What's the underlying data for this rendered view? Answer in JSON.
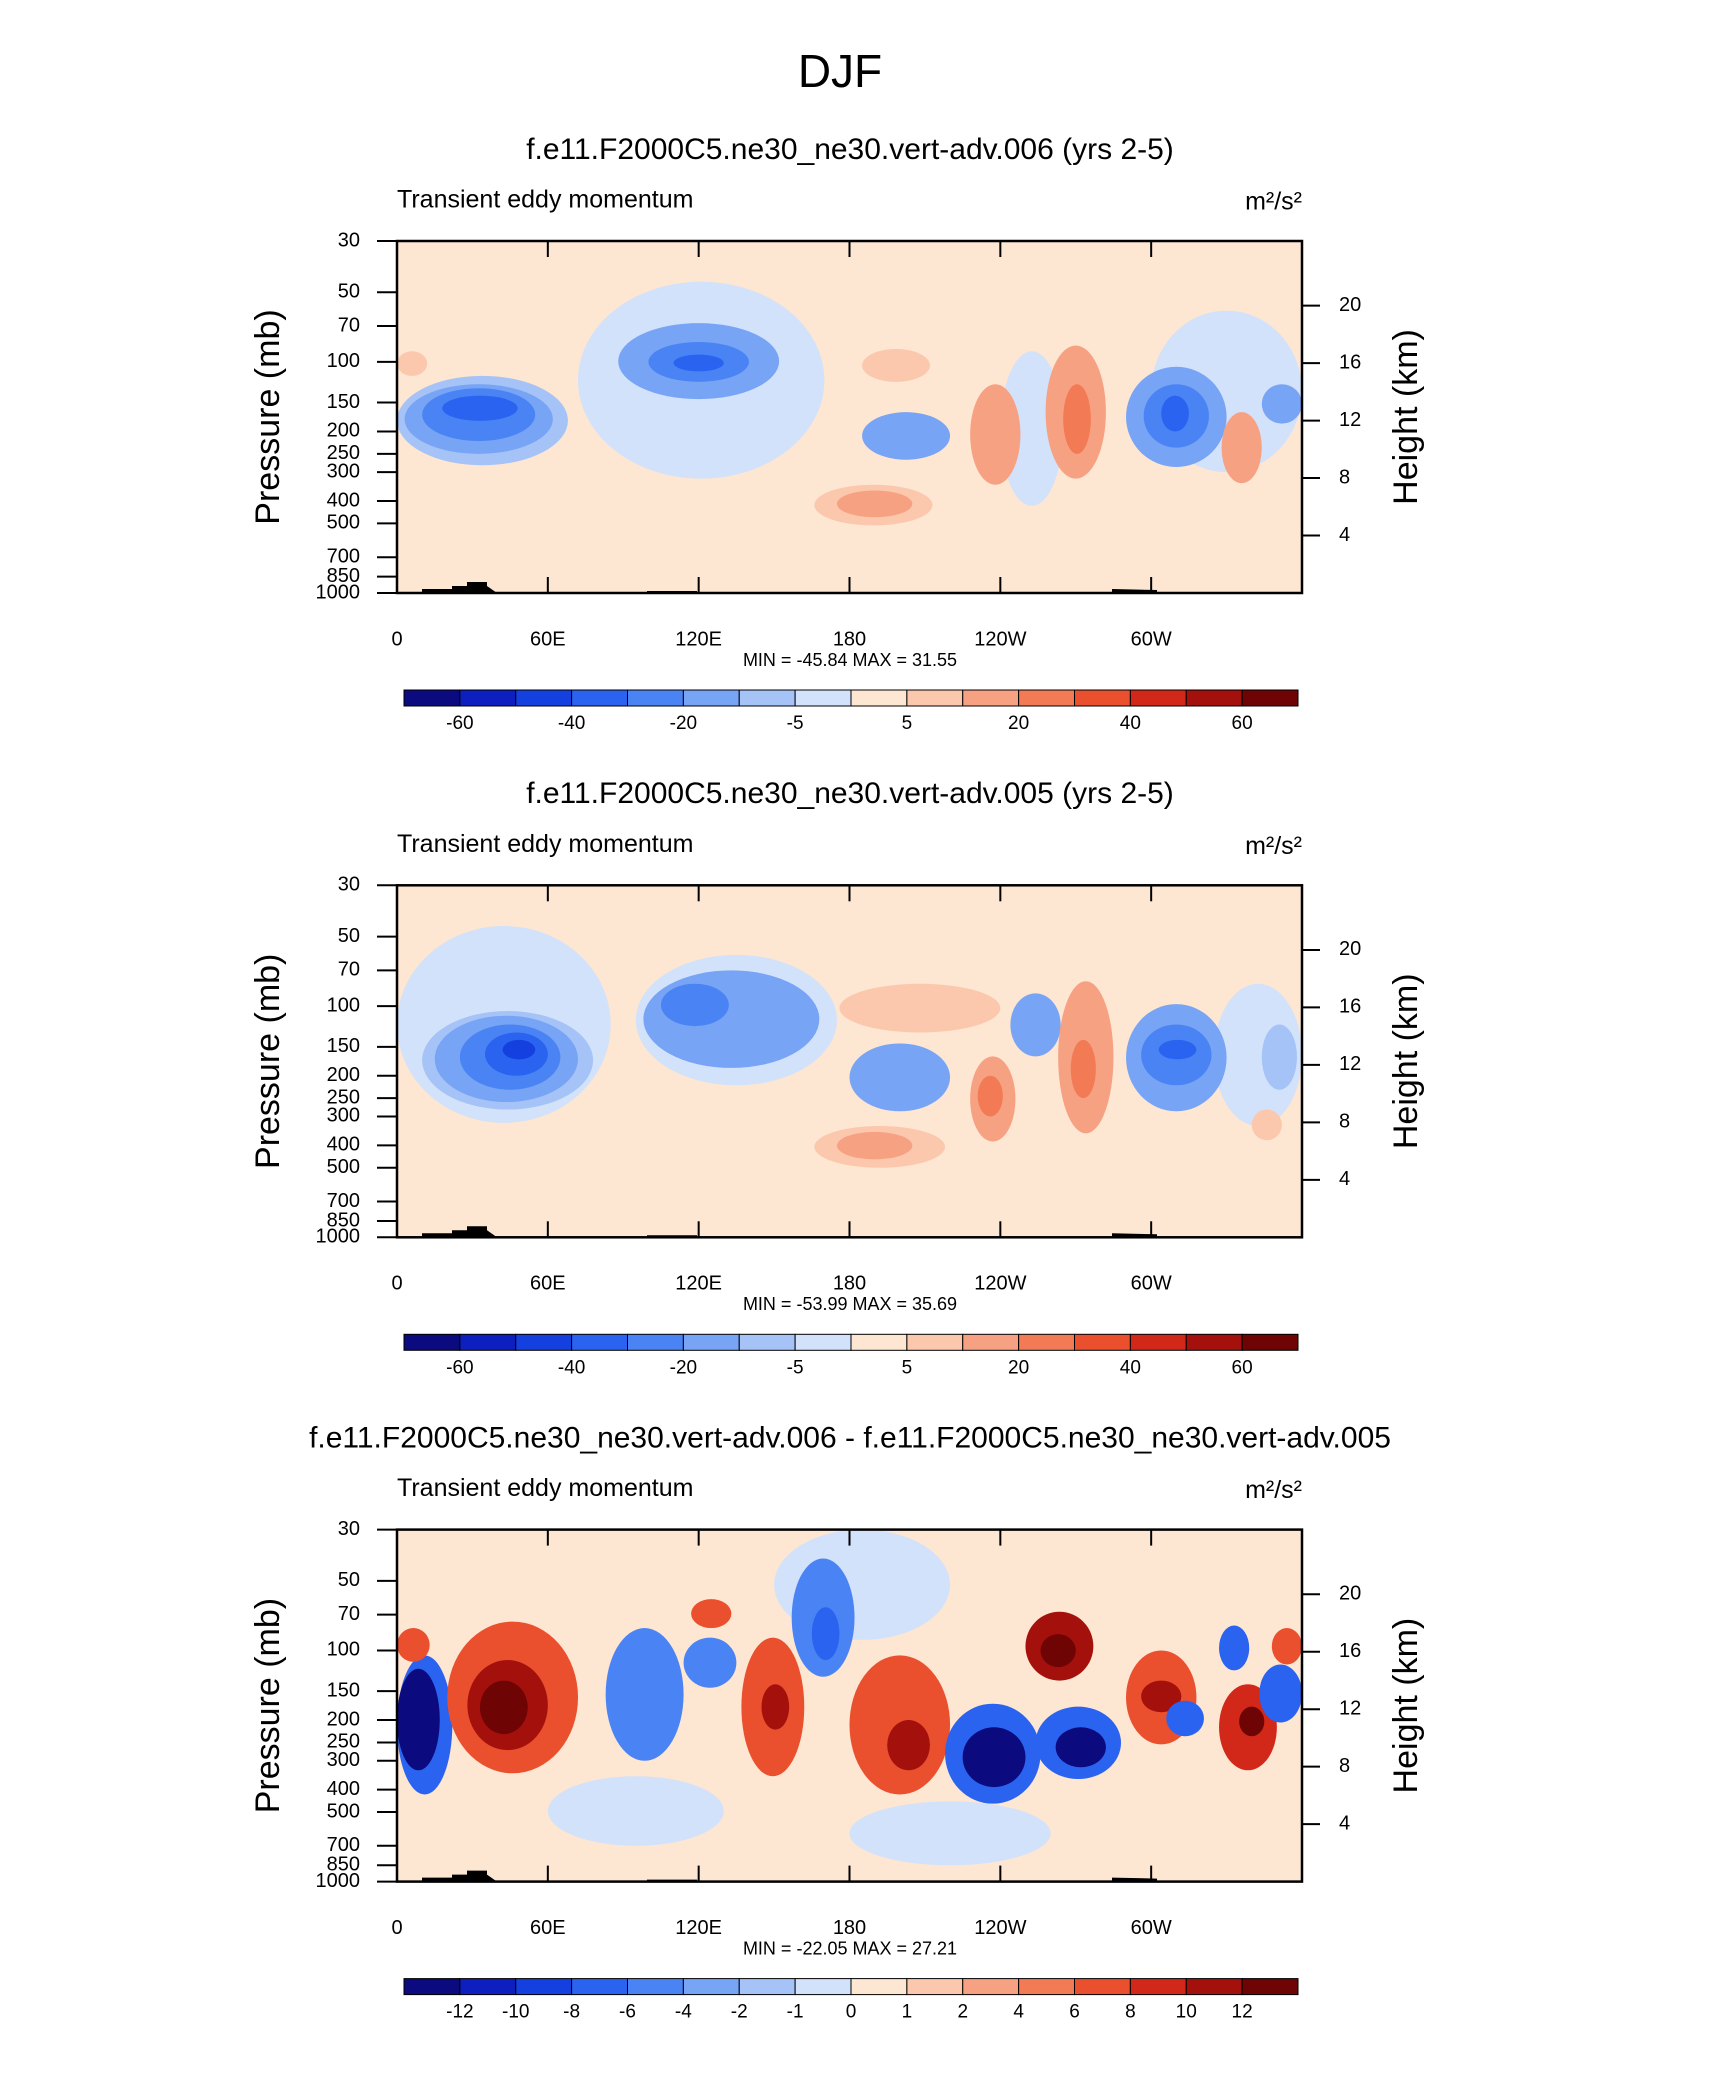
{
  "title": "DJF",
  "chart_data": [
    {
      "type": "contour",
      "title": "f.e11.F2000C5.ne30_ne30.vert-adv.006 (yrs 2-5)",
      "subtitle": "Transient eddy momentum",
      "units": "m²/s²",
      "y_label": "Pressure (mb)",
      "y2_label": "Height (km)",
      "stats": "MIN = -45.84  MAX =  31.55",
      "xlim": [
        0,
        360
      ],
      "xticks": [
        0,
        {
          "value": 60,
          "label": "60E"
        },
        {
          "value": 120,
          "label": "120E"
        },
        180,
        {
          "value": 240,
          "label": "120W"
        },
        {
          "value": 300,
          "label": "60W"
        }
      ],
      "ylim": [
        1000,
        30
      ],
      "log_y": true,
      "yticks": [
        30,
        50,
        70,
        100,
        150,
        200,
        250,
        300,
        400,
        500,
        700,
        850,
        1000
      ],
      "y2lim": [
        0,
        24.5
      ],
      "y2ticks": [
        4,
        8,
        12,
        16,
        20
      ],
      "background": 2,
      "features": [
        {
          "lon": [
            72,
            170
          ],
          "p": [
            45,
            320
          ],
          "value": -3
        },
        {
          "lon": [
            240,
            265
          ],
          "p": [
            90,
            420
          ],
          "value": -3
        },
        {
          "lon": [
            300,
            360
          ],
          "p": [
            60,
            300
          ],
          "value": -3
        },
        {
          "lon": [
            0,
            68
          ],
          "p": [
            115,
            280
          ],
          "value": -7
        },
        {
          "lon": [
            3,
            62
          ],
          "p": [
            125,
            250
          ],
          "value": -15
        },
        {
          "lon": [
            10,
            55
          ],
          "p": [
            130,
            220
          ],
          "value": -25
        },
        {
          "lon": [
            18,
            48
          ],
          "p": [
            140,
            180
          ],
          "value": -35
        },
        {
          "lon": [
            88,
            152
          ],
          "p": [
            68,
            145
          ],
          "value": -15
        },
        {
          "lon": [
            100,
            140
          ],
          "p": [
            82,
            122
          ],
          "value": -25
        },
        {
          "lon": [
            110,
            130
          ],
          "p": [
            93,
            110
          ],
          "value": -35
        },
        {
          "lon": [
            185,
            220
          ],
          "p": [
            165,
            265
          ],
          "value": -15
        },
        {
          "lon": [
            166,
            213
          ],
          "p": [
            340,
            510
          ],
          "value": 7
        },
        {
          "lon": [
            175,
            205
          ],
          "p": [
            360,
            470
          ],
          "value": 12
        },
        {
          "lon": [
            185,
            212
          ],
          "p": [
            88,
            122
          ],
          "value": 8
        },
        {
          "lon": [
            228,
            248
          ],
          "p": [
            125,
            340
          ],
          "value": 15
        },
        {
          "lon": [
            258,
            282
          ],
          "p": [
            85,
            320
          ],
          "value": 15
        },
        {
          "lon": [
            265,
            276
          ],
          "p": [
            125,
            250
          ],
          "value": 25
        },
        {
          "lon": [
            290,
            330
          ],
          "p": [
            105,
            285
          ],
          "value": -15
        },
        {
          "lon": [
            297,
            323
          ],
          "p": [
            125,
            235
          ],
          "value": -25
        },
        {
          "lon": [
            304,
            315
          ],
          "p": [
            140,
            200
          ],
          "value": -35
        },
        {
          "lon": [
            328,
            344
          ],
          "p": [
            165,
            335
          ],
          "value": 12
        },
        {
          "lon": [
            344,
            360
          ],
          "p": [
            125,
            185
          ],
          "value": -15
        },
        {
          "lon": [
            0,
            12
          ],
          "p": [
            90,
            115
          ],
          "value": 7
        }
      ],
      "colorbar": {
        "levels": [
          -60,
          -50,
          -40,
          -30,
          -20,
          -10,
          -5,
          0,
          5,
          10,
          20,
          30,
          40,
          50,
          60
        ],
        "label_stride": 2,
        "colors": [
          "#0b0a7e",
          "#0d1fbf",
          "#1540e0",
          "#2a63f0",
          "#4a84f4",
          "#78a4f5",
          "#a5c3f7",
          "#d2e2fb",
          "#fde6d2",
          "#fbc8ad",
          "#f7a183",
          "#f27a55",
          "#ea4f2e",
          "#d2281a",
          "#a4110d",
          "#6e0404"
        ]
      }
    },
    {
      "type": "contour",
      "title": "f.e11.F2000C5.ne30_ne30.vert-adv.005 (yrs 2-5)",
      "subtitle": "Transient eddy momentum",
      "units": "m²/s²",
      "y_label": "Pressure (mb)",
      "y2_label": "Height (km)",
      "stats": "MIN = -53.99  MAX =  35.69",
      "xlim": [
        0,
        360
      ],
      "xticks": [
        0,
        {
          "value": 60,
          "label": "60E"
        },
        {
          "value": 120,
          "label": "120E"
        },
        180,
        {
          "value": 240,
          "label": "120W"
        },
        {
          "value": 300,
          "label": "60W"
        }
      ],
      "ylim": [
        1000,
        30
      ],
      "log_y": true,
      "yticks": [
        30,
        50,
        70,
        100,
        150,
        200,
        250,
        300,
        400,
        500,
        700,
        850,
        1000
      ],
      "y2lim": [
        0,
        24.5
      ],
      "y2ticks": [
        4,
        8,
        12,
        16,
        20
      ],
      "background": 2,
      "features": [
        {
          "lon": [
            0,
            85
          ],
          "p": [
            45,
            320
          ],
          "value": -3
        },
        {
          "lon": [
            95,
            175
          ],
          "p": [
            60,
            220
          ],
          "value": -3
        },
        {
          "lon": [
            325,
            360
          ],
          "p": [
            80,
            330
          ],
          "value": -3
        },
        {
          "lon": [
            10,
            78
          ],
          "p": [
            105,
            280
          ],
          "value": -7
        },
        {
          "lon": [
            15,
            72
          ],
          "p": [
            110,
            260
          ],
          "value": -15
        },
        {
          "lon": [
            25,
            65
          ],
          "p": [
            120,
            230
          ],
          "value": -25
        },
        {
          "lon": [
            35,
            60
          ],
          "p": [
            130,
            200
          ],
          "value": -35
        },
        {
          "lon": [
            42,
            55
          ],
          "p": [
            140,
            170
          ],
          "value": -45
        },
        {
          "lon": [
            98,
            168
          ],
          "p": [
            70,
            185
          ],
          "value": -15
        },
        {
          "lon": [
            105,
            132
          ],
          "p": [
            80,
            122
          ],
          "value": -25
        },
        {
          "lon": [
            180,
            220
          ],
          "p": [
            145,
            285
          ],
          "value": -15
        },
        {
          "lon": [
            166,
            218
          ],
          "p": [
            330,
            500
          ],
          "value": 7
        },
        {
          "lon": [
            175,
            205
          ],
          "p": [
            350,
            460
          ],
          "value": 12
        },
        {
          "lon": [
            176,
            240
          ],
          "p": [
            80,
            130
          ],
          "value": 7
        },
        {
          "lon": [
            228,
            246
          ],
          "p": [
            165,
            385
          ],
          "value": 15
        },
        {
          "lon": [
            231,
            241
          ],
          "p": [
            200,
            300
          ],
          "value": 25
        },
        {
          "lon": [
            244,
            264
          ],
          "p": [
            88,
            165
          ],
          "value": -15
        },
        {
          "lon": [
            263,
            285
          ],
          "p": [
            78,
            355
          ],
          "value": 15
        },
        {
          "lon": [
            268,
            278
          ],
          "p": [
            140,
            250
          ],
          "value": 25
        },
        {
          "lon": [
            290,
            330
          ],
          "p": [
            98,
            285
          ],
          "value": -15
        },
        {
          "lon": [
            296,
            324
          ],
          "p": [
            120,
            220
          ],
          "value": -25
        },
        {
          "lon": [
            303,
            318
          ],
          "p": [
            140,
            170
          ],
          "value": -35
        },
        {
          "lon": [
            344,
            358
          ],
          "p": [
            120,
            230
          ],
          "value": -7
        },
        {
          "lon": [
            340,
            352
          ],
          "p": [
            280,
            380
          ],
          "value": 7
        }
      ],
      "colorbar": {
        "levels": [
          -60,
          -50,
          -40,
          -30,
          -20,
          -10,
          -5,
          0,
          5,
          10,
          20,
          30,
          40,
          50,
          60
        ],
        "label_stride": 2,
        "colors": [
          "#0b0a7e",
          "#0d1fbf",
          "#1540e0",
          "#2a63f0",
          "#4a84f4",
          "#78a4f5",
          "#a5c3f7",
          "#d2e2fb",
          "#fde6d2",
          "#fbc8ad",
          "#f7a183",
          "#f27a55",
          "#ea4f2e",
          "#d2281a",
          "#a4110d",
          "#6e0404"
        ]
      }
    },
    {
      "type": "contour",
      "title": "f.e11.F2000C5.ne30_ne30.vert-adv.006 - f.e11.F2000C5.ne30_ne30.vert-adv.005",
      "subtitle": "Transient eddy momentum",
      "units": "m²/s²",
      "y_label": "Pressure (mb)",
      "y2_label": "Height (km)",
      "stats": "MIN = -22.05  MAX =  27.21",
      "xlim": [
        0,
        360
      ],
      "xticks": [
        0,
        {
          "value": 60,
          "label": "60E"
        },
        {
          "value": 120,
          "label": "120E"
        },
        180,
        {
          "value": 240,
          "label": "120W"
        },
        {
          "value": 300,
          "label": "60W"
        }
      ],
      "ylim": [
        1000,
        30
      ],
      "log_y": true,
      "yticks": [
        30,
        50,
        70,
        100,
        150,
        200,
        250,
        300,
        400,
        500,
        700,
        850,
        1000
      ],
      "y2lim": [
        0,
        24.5
      ],
      "y2ticks": [
        4,
        8,
        12,
        16,
        20
      ],
      "background": 0.5,
      "features": [
        {
          "lon": [
            60,
            130
          ],
          "p": [
            350,
            700
          ],
          "value": -0.5
        },
        {
          "lon": [
            180,
            260
          ],
          "p": [
            450,
            850
          ],
          "value": -0.5
        },
        {
          "lon": [
            150,
            220
          ],
          "p": [
            30,
            90
          ],
          "value": -0.5
        },
        {
          "lon": [
            0,
            22
          ],
          "p": [
            105,
            420
          ],
          "value": -8
        },
        {
          "lon": [
            0,
            17
          ],
          "p": [
            120,
            330
          ],
          "value": -13
        },
        {
          "lon": [
            0,
            13
          ],
          "p": [
            80,
            112
          ],
          "value": 7
        },
        {
          "lon": [
            20,
            72
          ],
          "p": [
            75,
            340
          ],
          "value": 7
        },
        {
          "lon": [
            28,
            60
          ],
          "p": [
            110,
            270
          ],
          "value": 11
        },
        {
          "lon": [
            33,
            52
          ],
          "p": [
            135,
            230
          ],
          "value": 13
        },
        {
          "lon": [
            83,
            114
          ],
          "p": [
            80,
            300
          ],
          "value": -5
        },
        {
          "lon": [
            114,
            135
          ],
          "p": [
            88,
            145
          ],
          "value": -5
        },
        {
          "lon": [
            117,
            133
          ],
          "p": [
            60,
            80
          ],
          "value": 7
        },
        {
          "lon": [
            137,
            162
          ],
          "p": [
            88,
            350
          ],
          "value": 7
        },
        {
          "lon": [
            145,
            156
          ],
          "p": [
            140,
            220
          ],
          "value": 11
        },
        {
          "lon": [
            157,
            182
          ],
          "p": [
            40,
            130
          ],
          "value": -5
        },
        {
          "lon": [
            165,
            176
          ],
          "p": [
            65,
            110
          ],
          "value": -8
        },
        {
          "lon": [
            180,
            220
          ],
          "p": [
            105,
            420
          ],
          "value": 7
        },
        {
          "lon": [
            195,
            212
          ],
          "p": [
            200,
            330
          ],
          "value": 11
        },
        {
          "lon": [
            218,
            256
          ],
          "p": [
            170,
            460
          ],
          "value": -8
        },
        {
          "lon": [
            225,
            250
          ],
          "p": [
            215,
            390
          ],
          "value": -13
        },
        {
          "lon": [
            250,
            277
          ],
          "p": [
            68,
            135
          ],
          "value": 11
        },
        {
          "lon": [
            256,
            270
          ],
          "p": [
            85,
            118
          ],
          "value": 13
        },
        {
          "lon": [
            254,
            288
          ],
          "p": [
            175,
            360
          ],
          "value": -8
        },
        {
          "lon": [
            262,
            282
          ],
          "p": [
            215,
            320
          ],
          "value": -13
        },
        {
          "lon": [
            290,
            318
          ],
          "p": [
            100,
            255
          ],
          "value": 7
        },
        {
          "lon": [
            296,
            312
          ],
          "p": [
            135,
            185
          ],
          "value": 11
        },
        {
          "lon": [
            306,
            321
          ],
          "p": [
            165,
            235
          ],
          "value": -8
        },
        {
          "lon": [
            327,
            339
          ],
          "p": [
            78,
            122
          ],
          "value": -7
        },
        {
          "lon": [
            327,
            350
          ],
          "p": [
            140,
            330
          ],
          "value": 9
        },
        {
          "lon": [
            335,
            345
          ],
          "p": [
            175,
            235
          ],
          "value": 13
        },
        {
          "lon": [
            343,
            360
          ],
          "p": [
            115,
            205
          ],
          "value": -8
        },
        {
          "lon": [
            348,
            360
          ],
          "p": [
            80,
            115
          ],
          "value": 6
        }
      ],
      "colorbar": {
        "levels": [
          -12,
          -10,
          -8,
          -6,
          -4,
          -2,
          -1,
          0,
          1,
          2,
          4,
          6,
          8,
          10,
          12
        ],
        "label_stride": 1,
        "colors": [
          "#0b0a7e",
          "#0d1fbf",
          "#1540e0",
          "#2a63f0",
          "#4a84f4",
          "#78a4f5",
          "#a5c3f7",
          "#d2e2fb",
          "#fde6d2",
          "#fbc8ad",
          "#f7a183",
          "#f27a55",
          "#ea4f2e",
          "#d2281a",
          "#a4110d",
          "#6e0404"
        ]
      }
    }
  ]
}
